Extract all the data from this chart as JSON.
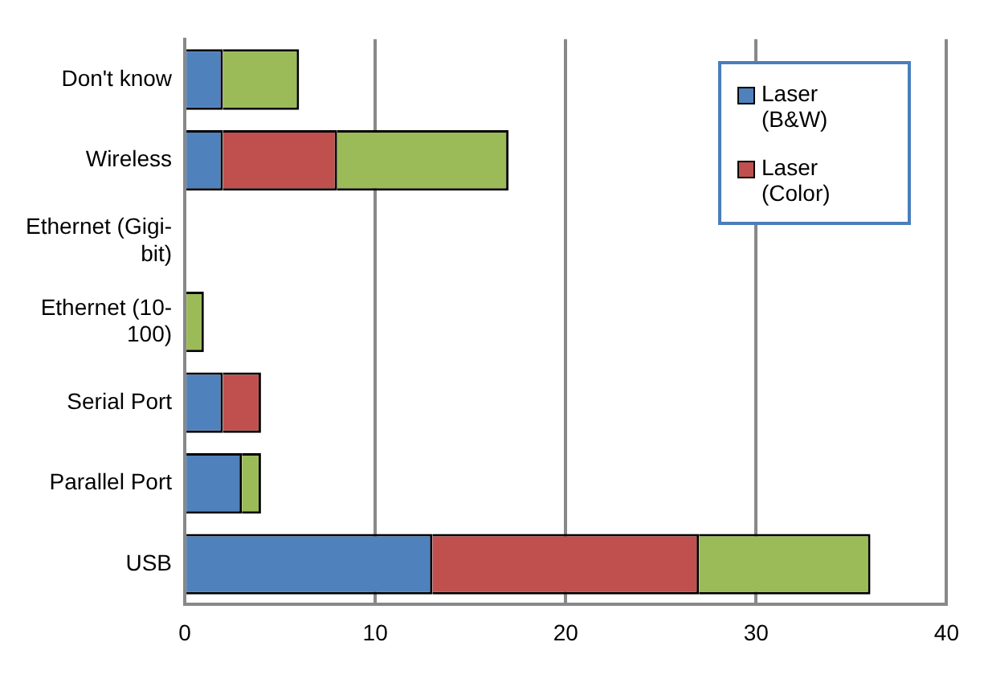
{
  "chart_data": {
    "type": "bar",
    "orientation": "horizontal",
    "stacked": true,
    "categories": [
      "Don't know",
      "Wireless",
      "Ethernet (Gigi-bit)",
      "Ethernet (10-100)",
      "Serial Port",
      "Parallel Port",
      "USB"
    ],
    "series": [
      {
        "name": "Laser (B&W)",
        "color": "#4f81bd",
        "values": [
          2,
          2,
          0,
          0,
          2,
          3,
          13
        ]
      },
      {
        "name": "Laser (Color)",
        "color": "#c0504d",
        "values": [
          0,
          6,
          0,
          0,
          2,
          0,
          14
        ]
      },
      {
        "color": "#9bbb59",
        "values": [
          4,
          9,
          0,
          1,
          0,
          1,
          9
        ]
      }
    ],
    "xlim": [
      0,
      40
    ],
    "xticks": [
      0,
      10,
      20,
      30,
      40
    ],
    "grid": "x",
    "legend": "top right"
  }
}
